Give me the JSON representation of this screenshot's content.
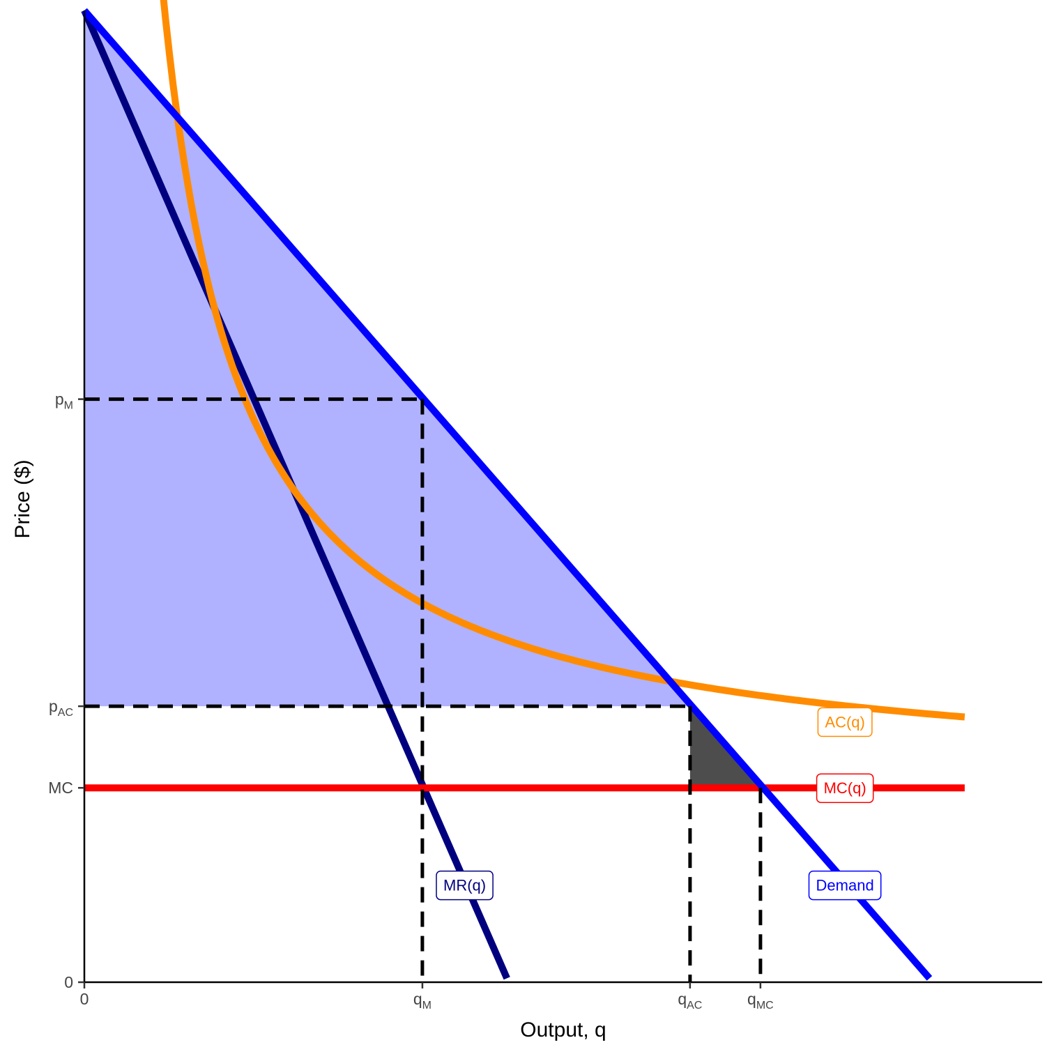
{
  "chart_data": {
    "type": "line",
    "xlabel": "Output, q",
    "ylabel": "Price ($)",
    "xlim": [
      0,
      13.6
    ],
    "ylim": [
      0,
      12.5
    ],
    "grid": false,
    "x_ticks": [
      {
        "value": 0,
        "main": "0",
        "sub": ""
      },
      {
        "value": 4.8,
        "main": "q",
        "sub": "M"
      },
      {
        "value": 8.6,
        "main": "q",
        "sub": "AC"
      },
      {
        "value": 9.6,
        "main": "q",
        "sub": "MC"
      }
    ],
    "y_ticks": [
      {
        "value": 0,
        "main": "0",
        "sub": ""
      },
      {
        "value": 2.5,
        "main": "MC",
        "sub": ""
      },
      {
        "value": 3.55,
        "main": "p",
        "sub": "AC"
      },
      {
        "value": 7.5,
        "main": "p",
        "sub": "M"
      }
    ],
    "series": [
      {
        "name": "Demand",
        "color": "#0000ff",
        "x": [
          0,
          12
        ],
        "y": [
          12.5,
          0.05
        ]
      },
      {
        "name": "MR(q)",
        "color": "#00007f",
        "x": [
          0,
          6
        ],
        "y": [
          12.5,
          0.05
        ]
      },
      {
        "name": "AC(q)",
        "color": "#ff8c00",
        "fixed_cost": 11.4,
        "marginal_cost": 2.5,
        "x_range": [
          1,
          12.5
        ]
      },
      {
        "name": "MC(q)",
        "color": "#ff0000",
        "x": [
          0,
          12.5
        ],
        "y": [
          2.5,
          2.5
        ]
      }
    ],
    "reference_lines": [
      {
        "from": [
          0,
          7.5
        ],
        "to": [
          4.8,
          7.5
        ]
      },
      {
        "from": [
          4.8,
          7.5
        ],
        "to": [
          4.8,
          0
        ]
      },
      {
        "from": [
          0,
          3.55
        ],
        "to": [
          8.6,
          3.55
        ]
      },
      {
        "from": [
          8.6,
          3.55
        ],
        "to": [
          8.6,
          0
        ]
      },
      {
        "from": [
          9.6,
          2.5
        ],
        "to": [
          9.6,
          0
        ]
      }
    ],
    "shaded_regions": [
      {
        "name": "consumer-surplus",
        "color": "#b0b2ff",
        "points": [
          [
            0,
            12.5
          ],
          [
            8.6,
            3.55
          ],
          [
            0,
            3.55
          ]
        ]
      },
      {
        "name": "deadweight-loss",
        "color": "#4d4d4d",
        "points": [
          [
            8.6,
            3.55
          ],
          [
            9.6,
            2.5
          ],
          [
            8.6,
            2.5
          ]
        ]
      }
    ],
    "labels": [
      {
        "series": "MR(q)",
        "text": "MR(q)",
        "x": 5.4,
        "y": 1.25,
        "color": "#00007f"
      },
      {
        "series": "Demand",
        "text": "Demand",
        "x": 10.8,
        "y": 1.25,
        "color": "#0000ff"
      },
      {
        "series": "AC(q)",
        "text": "AC(q)",
        "x": 10.8,
        "y": 3.35,
        "color": "#ff8c00"
      },
      {
        "series": "MC(q)",
        "text": "MC(q)",
        "x": 10.8,
        "y": 2.5,
        "color": "#ff0000"
      }
    ]
  }
}
